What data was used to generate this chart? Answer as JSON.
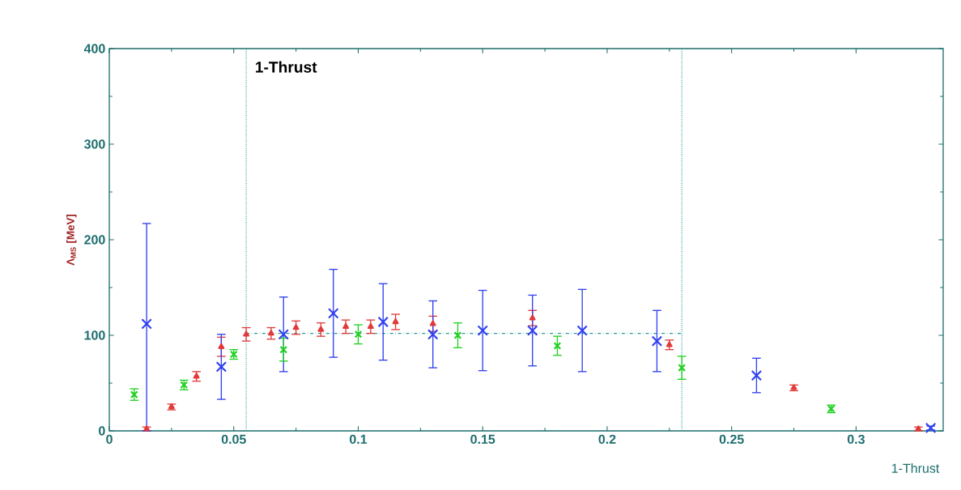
{
  "chart_data": {
    "type": "scatter",
    "title": "1-Thrust",
    "xlabel": "1-Thrust",
    "ylabel": "Λ$_{MS}$ [MeV]",
    "xlim": [
      0,
      0.335
    ],
    "ylim": [
      0,
      400
    ],
    "xticks": [
      0,
      0.05,
      0.1,
      0.15,
      0.2,
      0.25,
      0.3
    ],
    "yticks": [
      0,
      100,
      200,
      300,
      400
    ],
    "ref_lines": [
      {
        "axis": "x",
        "value": 0.055,
        "color": "#2a9a9a",
        "line_style": "dotted"
      },
      {
        "axis": "x",
        "value": 0.23,
        "color": "#2a9a9a",
        "line_style": "dotted"
      }
    ],
    "series": [
      {
        "type": "line",
        "color": "#2a9a9a",
        "line_style": "dashed",
        "marker": "none",
        "x": [
          0.055,
          0.23
        ],
        "values": [
          102,
          102
        ]
      },
      {
        "color": "#e03a3a",
        "marker": "triangle",
        "x": [
          0.015,
          0.025,
          0.035,
          0.045,
          0.055,
          0.065,
          0.075,
          0.085,
          0.095,
          0.105,
          0.115,
          0.13,
          0.17,
          0.225,
          0.275,
          0.325
        ],
        "values": [
          2,
          25,
          57,
          88,
          101,
          102,
          108,
          106,
          109,
          109,
          114,
          112,
          118,
          90,
          45,
          2
        ],
        "errors": [
          2,
          3,
          5,
          10,
          7,
          6,
          7,
          7,
          7,
          7,
          8,
          8,
          8,
          5,
          3,
          2
        ]
      },
      {
        "color": "#3040f0",
        "marker": "cross",
        "x": [
          0.015,
          0.045,
          0.07,
          0.09,
          0.11,
          0.13,
          0.15,
          0.17,
          0.19,
          0.22,
          0.26,
          0.33
        ],
        "values": [
          112,
          67,
          101,
          123,
          114,
          101,
          105,
          105,
          105,
          94,
          58,
          3
        ],
        "errors": [
          [
            0,
            217
          ],
          34,
          39,
          46,
          40,
          35,
          42,
          37,
          43,
          32,
          18,
          2
        ]
      },
      {
        "color": "#20d020",
        "marker": "cross",
        "x": [
          0.01,
          0.03,
          0.05,
          0.07,
          0.1,
          0.14,
          0.18,
          0.23,
          0.29
        ],
        "values": [
          38,
          48,
          80,
          85,
          101,
          100,
          89,
          66,
          23
        ],
        "errors": [
          6,
          5,
          5,
          12,
          10,
          13,
          10,
          12,
          4
        ]
      }
    ]
  }
}
